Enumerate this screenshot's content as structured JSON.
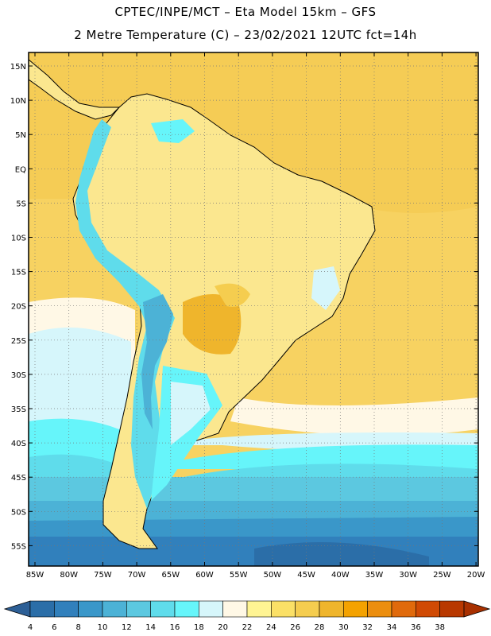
{
  "header": {
    "line1": "CPTEC/INPE/MCT –  Eta Model 15km – GFS",
    "line2": "2 Metre Temperature (C) – 23/02/2021 12UTC fct=14h"
  },
  "map": {
    "lat_labels": [
      "15N",
      "10N",
      "5N",
      "EQ",
      "5S",
      "10S",
      "15S",
      "20S",
      "25S",
      "30S",
      "35S",
      "40S",
      "45S",
      "50S",
      "55S"
    ],
    "lon_labels": [
      "85W",
      "80W",
      "75W",
      "70W",
      "65W",
      "60W",
      "55W",
      "50W",
      "45W",
      "40W",
      "35W",
      "30W",
      "25W",
      "20W"
    ]
  },
  "colorbar": {
    "ticks": [
      "4",
      "6",
      "8",
      "10",
      "12",
      "14",
      "16",
      "18",
      "20",
      "22",
      "24",
      "26",
      "28",
      "30",
      "32",
      "34",
      "36",
      "38"
    ],
    "colors": [
      "#2b6ea8",
      "#3180bc",
      "#3a97c9",
      "#4cb2d6",
      "#5cc8e0",
      "#5fdceb",
      "#66f5fa",
      "#d6f6fb",
      "#fff8e6",
      "#fff493",
      "#fbe066",
      "#f5cd4f",
      "#efb52c",
      "#f4a200",
      "#ec8e0e",
      "#e06a0c",
      "#d04a04",
      "#b83800"
    ],
    "low_end_color": "#2d5f96",
    "high_end_color": "#a83000"
  }
}
